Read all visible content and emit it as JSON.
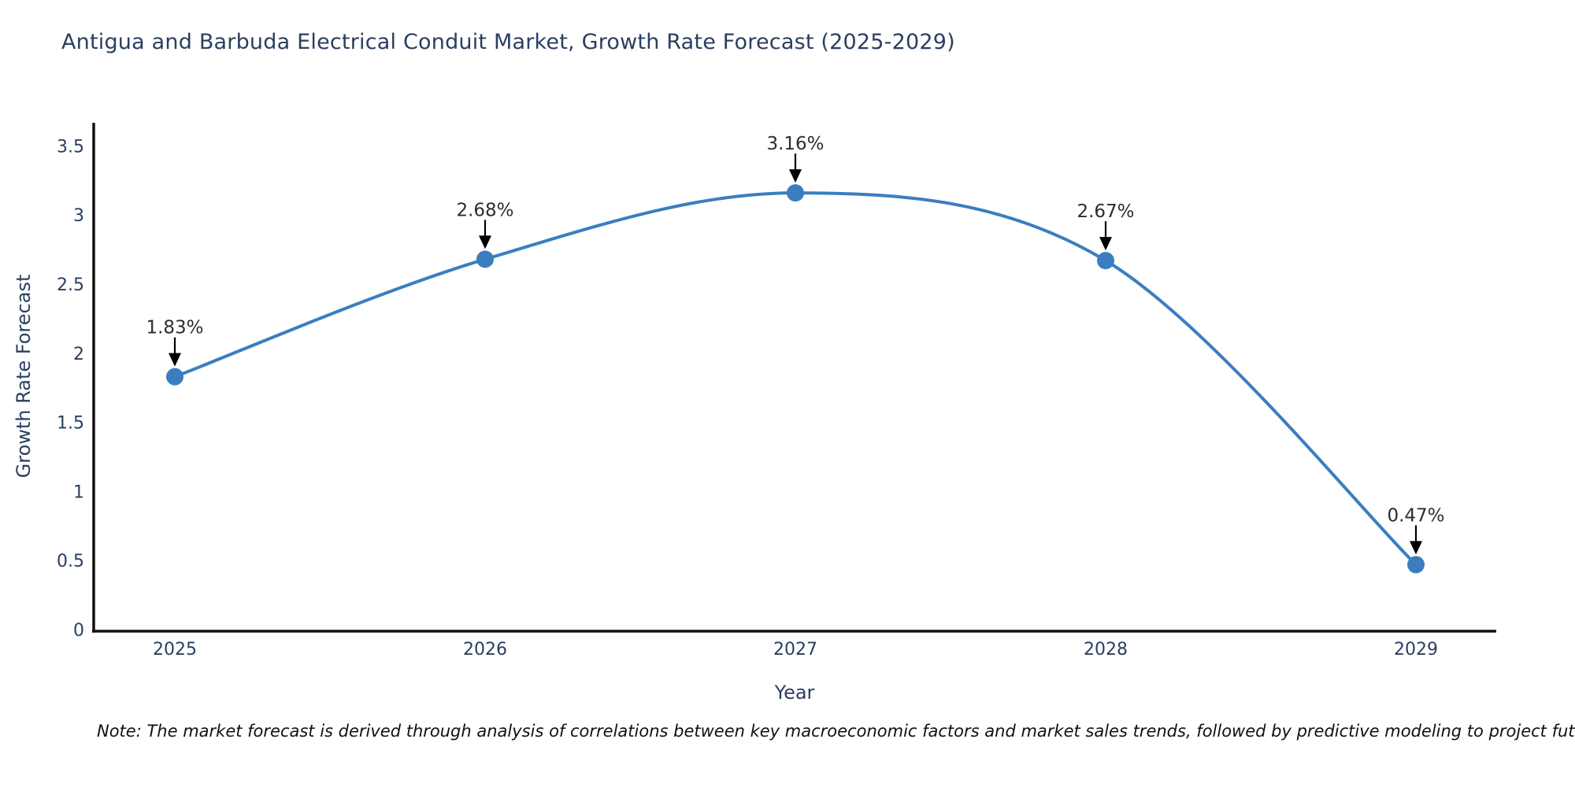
{
  "title": "Antigua and Barbuda Electrical Conduit Market, Growth Rate Forecast (2025-2029)",
  "chart_data": {
    "type": "line",
    "title": "Antigua and Barbuda Electrical Conduit Market, Growth Rate Forecast (2025-2029)",
    "categories": [
      "2025",
      "2026",
      "2027",
      "2028",
      "2029"
    ],
    "values": [
      1.83,
      2.68,
      3.16,
      2.67,
      0.47
    ],
    "point_labels": [
      "1.83%",
      "2.68%",
      "3.16%",
      "2.67%",
      "0.47%"
    ],
    "xlabel": "Year",
    "ylabel": "Growth Rate Forecast",
    "ylim": [
      0,
      3.5
    ],
    "yticks": [
      "0",
      "0.5",
      "1",
      "1.5",
      "2",
      "2.5",
      "3",
      "3.5"
    ],
    "grid": false,
    "legend": "none",
    "curve": "spline",
    "line_color": "#3a7ebf",
    "marker_color": "#3a7ebf",
    "arrow_color": "#000000",
    "axis_color": "#111111",
    "text_color": "#2a3f5f"
  },
  "note": "Note: The market forecast is derived through analysis of correlations between key macroeconomic factors and market sales trends, followed by predictive modeling to project future sales."
}
